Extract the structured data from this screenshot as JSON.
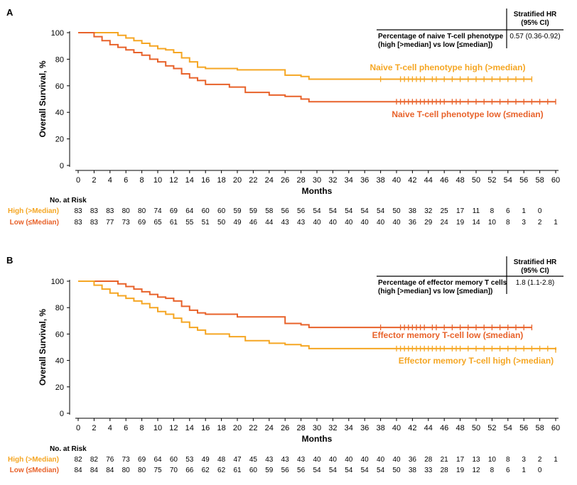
{
  "colors": {
    "high_a": "#F5A623",
    "low_a": "#E8622A",
    "high_b": "#F5A623",
    "low_b": "#E8622A",
    "axis": "#000000"
  },
  "chart_data": [
    {
      "type": "line",
      "panel_label": "A",
      "xlabel": "Months",
      "ylabel": "Overall Survival, %",
      "xlim": [
        0,
        60
      ],
      "ylim": [
        0,
        100
      ],
      "x_ticks": [
        "0",
        "2",
        "4",
        "6",
        "8",
        "10",
        "12",
        "14",
        "16",
        "18",
        "20",
        "22",
        "24",
        "26",
        "28",
        "30",
        "32",
        "34",
        "36",
        "38",
        "40",
        "42",
        "44",
        "46",
        "48",
        "50",
        "52",
        "54",
        "56",
        "58",
        "60"
      ],
      "y_ticks": [
        "0",
        "20",
        "40",
        "60",
        "80",
        "100"
      ],
      "hr_table": {
        "header": [
          "Stratified HR",
          "(95% CI)"
        ],
        "row_label": [
          "Percentage of naive T-cell phenotype",
          "(high [>median] vs low [≤median])"
        ],
        "row_value": "0.57 (0.36-0.92)"
      },
      "series": [
        {
          "name": "Naive T-cell phenotype high (>median)",
          "color_key": "high_a",
          "x": [
            0,
            5,
            6,
            7,
            8,
            9,
            10,
            11,
            12,
            13,
            14,
            15,
            16,
            20,
            26,
            28,
            29,
            57
          ],
          "y": [
            100,
            98,
            96,
            94,
            92,
            90,
            88,
            87,
            85,
            81,
            78,
            74,
            73,
            72,
            68,
            67,
            65,
            65
          ],
          "censor_x": [
            38,
            40.5,
            41,
            41.5,
            42,
            42.5,
            43,
            43.5,
            44.5,
            45,
            46,
            47,
            48,
            49,
            50,
            51,
            52,
            53,
            54,
            55,
            56,
            57
          ]
        },
        {
          "name": "Naive T-cell phenotype low (≤median)",
          "color_key": "low_a",
          "x": [
            0,
            2,
            3,
            4,
            5,
            6,
            7,
            8,
            9,
            10,
            11,
            12,
            13,
            14,
            15,
            16,
            19,
            21,
            24,
            26,
            28,
            29,
            60
          ],
          "y": [
            100,
            97,
            94,
            91,
            89,
            87,
            85,
            83,
            80,
            78,
            75,
            73,
            69,
            66,
            64,
            61,
            59,
            55,
            53,
            52,
            50,
            48,
            48
          ],
          "censor_x": [
            40,
            40.5,
            41,
            41.5,
            42,
            42.5,
            43,
            43.5,
            44,
            44.5,
            45,
            45.5,
            46,
            47,
            47.5,
            48,
            49,
            50,
            51,
            52,
            53,
            54,
            55,
            56,
            57,
            58,
            59,
            60
          ]
        }
      ],
      "risk_table": {
        "title": "No. at Risk",
        "rows": [
          {
            "label": "High (>Median)",
            "color_key": "high_a",
            "values": [
              "83",
              "83",
              "83",
              "80",
              "80",
              "74",
              "69",
              "64",
              "60",
              "60",
              "59",
              "59",
              "58",
              "56",
              "56",
              "54",
              "54",
              "54",
              "54",
              "54",
              "50",
              "38",
              "32",
              "25",
              "17",
              "11",
              "8",
              "6",
              "1",
              "0",
              ""
            ]
          },
          {
            "label": "Low (≤Median)",
            "color_key": "low_a",
            "values": [
              "83",
              "83",
              "77",
              "73",
              "69",
              "65",
              "61",
              "55",
              "51",
              "50",
              "49",
              "46",
              "44",
              "43",
              "43",
              "40",
              "40",
              "40",
              "40",
              "40",
              "40",
              "36",
              "29",
              "24",
              "19",
              "14",
              "10",
              "8",
              "3",
              "2",
              "1"
            ]
          }
        ]
      }
    },
    {
      "type": "line",
      "panel_label": "B",
      "xlabel": "Months",
      "ylabel": "Overall Survival, %",
      "xlim": [
        0,
        60
      ],
      "ylim": [
        0,
        100
      ],
      "x_ticks": [
        "0",
        "2",
        "4",
        "6",
        "8",
        "10",
        "12",
        "14",
        "16",
        "18",
        "20",
        "22",
        "24",
        "26",
        "28",
        "30",
        "32",
        "34",
        "36",
        "38",
        "40",
        "42",
        "44",
        "46",
        "48",
        "50",
        "52",
        "54",
        "56",
        "58",
        "60"
      ],
      "y_ticks": [
        "0",
        "20",
        "40",
        "60",
        "80",
        "100"
      ],
      "hr_table": {
        "header": [
          "Stratified HR",
          "(95% CI)"
        ],
        "row_label": [
          "Percentage of effector memory T cells",
          "(high [>median] vs low [≤median])"
        ],
        "row_value": "1.8 (1.1-2.8)"
      },
      "series": [
        {
          "name": "Effector memory T-cell low (≤median)",
          "color_key": "low_b",
          "x": [
            0,
            5,
            6,
            7,
            8,
            9,
            10,
            11,
            12,
            13,
            14,
            15,
            16,
            20,
            26,
            28,
            29,
            57
          ],
          "y": [
            100,
            98,
            96,
            94,
            92,
            90,
            88,
            87,
            85,
            81,
            78,
            76,
            75,
            73,
            68,
            67,
            65,
            65
          ],
          "censor_x": [
            38,
            40.5,
            41,
            41.5,
            42,
            42.5,
            43,
            43.5,
            44.5,
            45,
            46,
            47,
            48,
            49,
            50,
            51,
            52,
            53,
            54,
            55,
            56,
            57
          ]
        },
        {
          "name": "Effector memory T-cell high (>median)",
          "color_key": "high_b",
          "x": [
            0,
            2,
            3,
            4,
            5,
            6,
            7,
            8,
            9,
            10,
            11,
            12,
            13,
            14,
            15,
            16,
            19,
            21,
            24,
            26,
            28,
            29,
            60
          ],
          "y": [
            100,
            97,
            94,
            91,
            89,
            87,
            85,
            83,
            80,
            77,
            75,
            72,
            69,
            65,
            63,
            60,
            58,
            55,
            53,
            52,
            51,
            49,
            48
          ],
          "censor_x": [
            40,
            40.5,
            41,
            41.5,
            42,
            42.5,
            43,
            43.5,
            44,
            44.5,
            45,
            45.5,
            46,
            47,
            47.5,
            48,
            49,
            50,
            51,
            52,
            53,
            54,
            55,
            56,
            57,
            58,
            59,
            60
          ]
        }
      ],
      "risk_table": {
        "title": "No. at Risk",
        "rows": [
          {
            "label": "High (>Median)",
            "color_key": "high_b",
            "values": [
              "82",
              "82",
              "76",
              "73",
              "69",
              "64",
              "60",
              "53",
              "49",
              "48",
              "47",
              "45",
              "43",
              "43",
              "43",
              "40",
              "40",
              "40",
              "40",
              "40",
              "40",
              "36",
              "28",
              "21",
              "17",
              "13",
              "10",
              "8",
              "3",
              "2",
              "1"
            ]
          },
          {
            "label": "Low (≤Median)",
            "color_key": "low_b",
            "values": [
              "84",
              "84",
              "84",
              "80",
              "80",
              "75",
              "70",
              "66",
              "62",
              "62",
              "61",
              "60",
              "59",
              "56",
              "56",
              "54",
              "54",
              "54",
              "54",
              "54",
              "50",
              "38",
              "33",
              "28",
              "19",
              "12",
              "8",
              "6",
              "1",
              "0",
              ""
            ]
          }
        ]
      }
    }
  ]
}
